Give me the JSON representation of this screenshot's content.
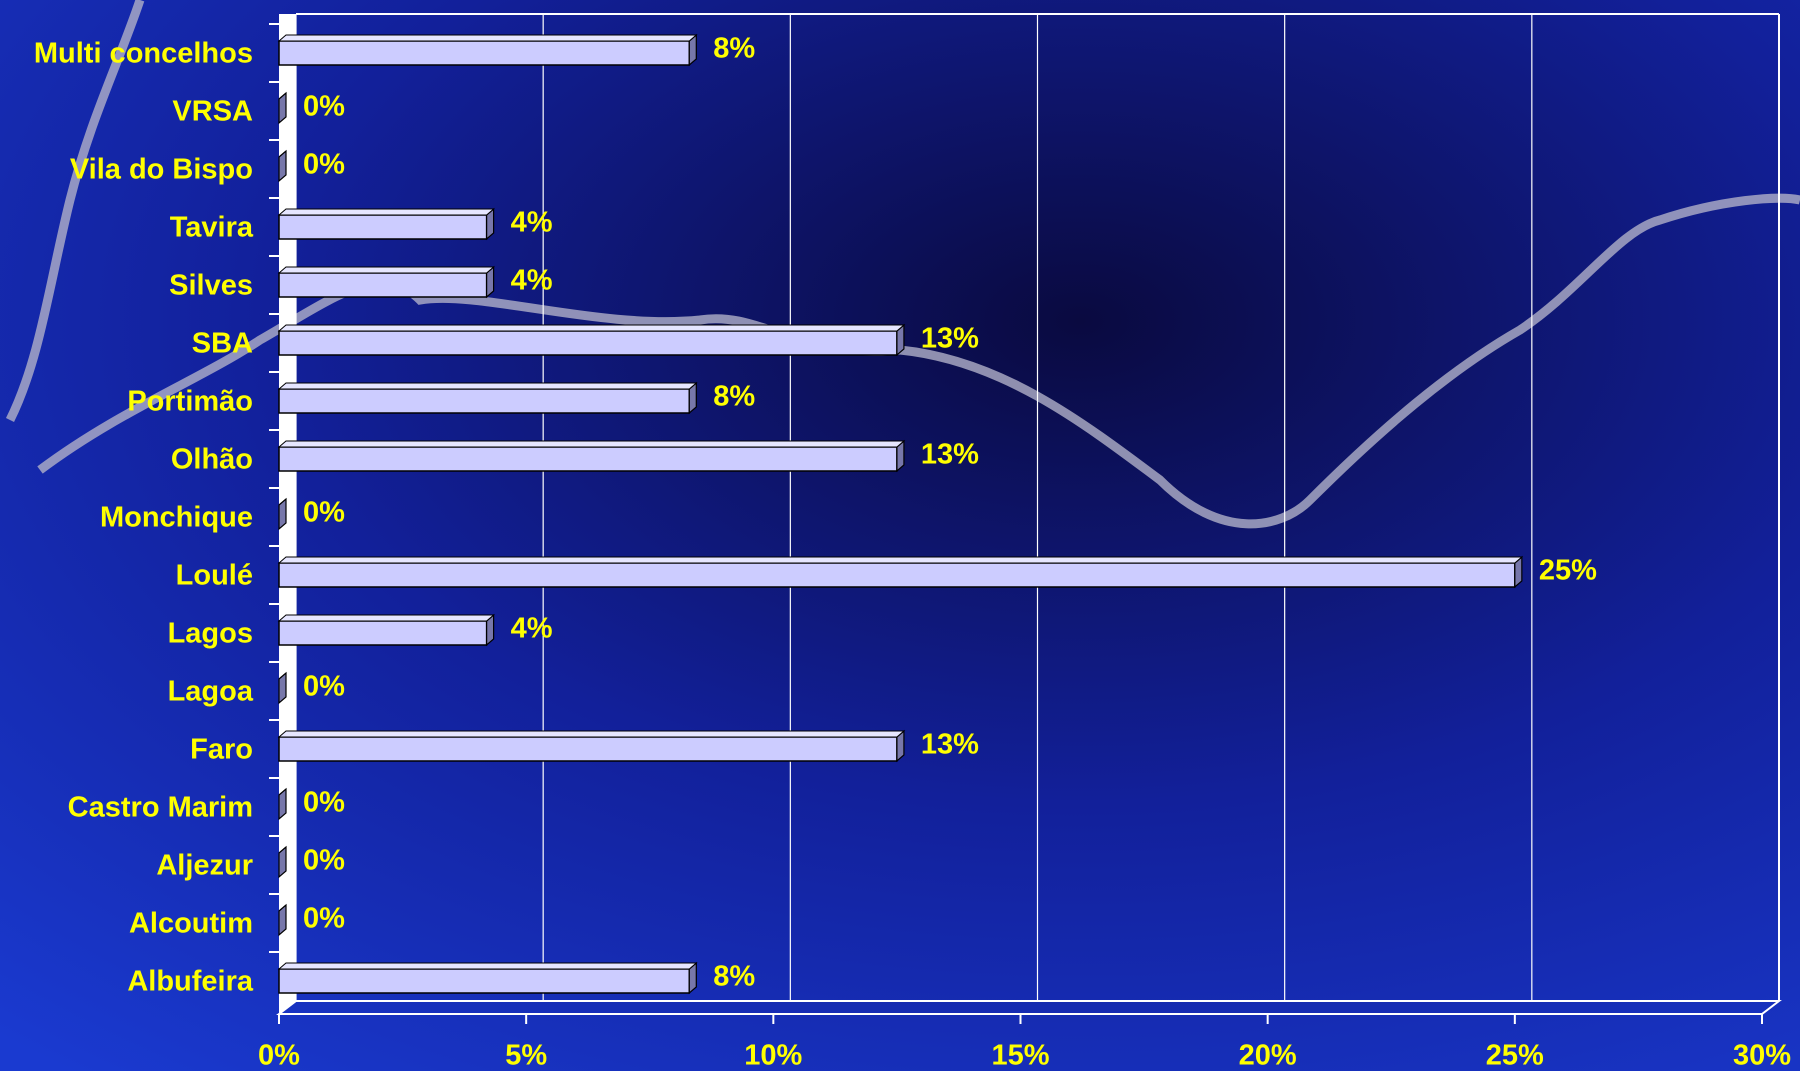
{
  "chart_data": {
    "type": "bar",
    "orientation": "horizontal",
    "categories": [
      "Multi concelhos",
      "VRSA",
      "Vila do Bispo",
      "Tavira",
      "Silves",
      "SBA",
      "Portimão",
      "Olhão",
      "Monchique",
      "Loulé",
      "Lagos",
      "Lagoa",
      "Faro",
      "Castro Marim",
      "Aljezur",
      "Alcoutim",
      "Albufeira"
    ],
    "values": [
      8.3,
      0,
      0,
      4.2,
      4.2,
      12.5,
      8.3,
      12.5,
      0,
      25,
      4.2,
      0,
      12.5,
      0,
      0,
      0,
      8.3
    ],
    "value_labels": [
      "8%",
      "0%",
      "0%",
      "4%",
      "4%",
      "13%",
      "8%",
      "13%",
      "0%",
      "25%",
      "4%",
      "0%",
      "13%",
      "0%",
      "0%",
      "0%",
      "8%"
    ],
    "color": "#ccccff",
    "xlim": [
      0,
      30
    ],
    "xticks": [
      {
        "value": 0,
        "label": "0%"
      },
      {
        "value": 5,
        "label": "5%"
      },
      {
        "value": 10,
        "label": "10%"
      },
      {
        "value": 15,
        "label": "15%"
      },
      {
        "value": 20,
        "label": "20%"
      },
      {
        "value": 25,
        "label": "25%"
      },
      {
        "value": 30,
        "label": "30%"
      }
    ],
    "grid": true
  }
}
